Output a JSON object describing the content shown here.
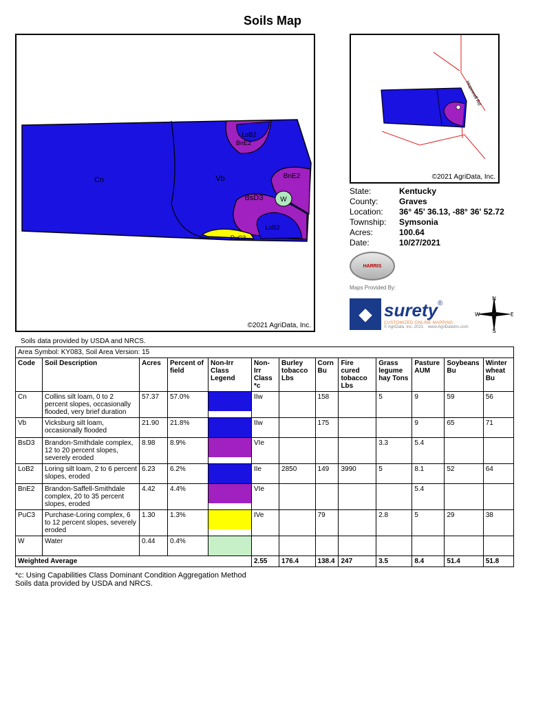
{
  "title": "Soils Map",
  "copyright": "©2021 AgriData, Inc.",
  "usda_note": "Soils data provided by USDA and NRCS.",
  "mini_map_road": "Hopewell Rd",
  "meta": {
    "state_k": "State:",
    "state_v": "Kentucky",
    "county_k": "County:",
    "county_v": "Graves",
    "location_k": "Location:",
    "location_v": "36° 45' 36.13,  -88° 36' 52.72",
    "township_k": "Township:",
    "township_v": "Symsonia",
    "acres_k": "Acres:",
    "acres_v": "100.64",
    "date_k": "Date:",
    "date_v": "10/27/2021"
  },
  "maps_provided": "Maps Provided By:",
  "surety": "surety",
  "surety_r": "®",
  "harris": "HARRIS",
  "area_symbol": "Area Symbol: KY083, Soil Area Version: 15",
  "columns": {
    "code": "Code",
    "desc": "Soil Description",
    "acres": "Acres",
    "pct": "Percent of field",
    "legend": "Non-Irr Class Legend",
    "class": "Non-Irr Class *c",
    "burley": "Burley tobacco Lbs",
    "corn": "Corn Bu",
    "firecured": "Fire cured tobacco Lbs",
    "grass": "Grass legume hay Tons",
    "pasture": "Pasture AUM",
    "soy": "Soybeans Bu",
    "wheat": "Winter wheat Bu"
  },
  "rows": [
    {
      "code": "Cn",
      "desc": "Collins silt loam, 0 to 2 percent slopes, occasionally flooded, very brief duration",
      "acres": "57.37",
      "pct": "57.0%",
      "color": "#1a12e0",
      "class": "IIw",
      "burley": "",
      "corn": "158",
      "firecured": "",
      "grass": "5",
      "pasture": "9",
      "soy": "59",
      "wheat": "56"
    },
    {
      "code": "Vb",
      "desc": "Vicksburg silt loam, occasionally flooded",
      "acres": "21.90",
      "pct": "21.8%",
      "color": "#1a12e0",
      "class": "IIw",
      "burley": "",
      "corn": "175",
      "firecured": "",
      "grass": "",
      "pasture": "9",
      "soy": "65",
      "wheat": "71"
    },
    {
      "code": "BsD3",
      "desc": "Brandon-Smithdale complex, 12 to 20 percent slopes, severely eroded",
      "acres": "8.98",
      "pct": "8.9%",
      "color": "#a020c0",
      "class": "VIe",
      "burley": "",
      "corn": "",
      "firecured": "",
      "grass": "3.3",
      "pasture": "5.4",
      "soy": "",
      "wheat": ""
    },
    {
      "code": "LoB2",
      "desc": "Loring silt loam, 2 to 6 percent slopes, eroded",
      "acres": "6.23",
      "pct": "6.2%",
      "color": "#1a12e0",
      "class": "IIe",
      "burley": "2850",
      "corn": "149",
      "firecured": "3990",
      "grass": "5",
      "pasture": "8.1",
      "soy": "52",
      "wheat": "64"
    },
    {
      "code": "BnE2",
      "desc": "Brandon-Saffell-Smithdale complex, 20 to 35 percent slopes, eroded",
      "acres": "4.42",
      "pct": "4.4%",
      "color": "#a020c0",
      "class": "VIe",
      "burley": "",
      "corn": "",
      "firecured": "",
      "grass": "",
      "pasture": "5.4",
      "soy": "",
      "wheat": ""
    },
    {
      "code": "PuC3",
      "desc": "Purchase-Loring complex, 6 to 12 percent slopes, severely eroded",
      "acres": "1.30",
      "pct": "1.3%",
      "color": "#ffff00",
      "class": "IVe",
      "burley": "",
      "corn": "79",
      "firecured": "",
      "grass": "2.8",
      "pasture": "5",
      "soy": "29",
      "wheat": "38"
    },
    {
      "code": "W",
      "desc": "Water",
      "acres": "0.44",
      "pct": "0.4%",
      "color": "#c8f0c8",
      "class": "",
      "burley": "",
      "corn": "",
      "firecured": "",
      "grass": "",
      "pasture": "",
      "soy": "",
      "wheat": ""
    }
  ],
  "wavg": {
    "label": "Weighted Average",
    "class": "2.55",
    "burley": "176.4",
    "corn": "138.4",
    "firecured": "247",
    "grass": "3.5",
    "pasture": "8.4",
    "soy": "51.4",
    "wheat": "51.8"
  },
  "footnote1": "*c: Using Capabilities Class Dominant Condition Aggregation Method",
  "footnote2": "Soils data provided by USDA and NRCS.",
  "map_labels": {
    "Cn": "Cn",
    "Vb": "Vb",
    "BsD3": "BsD3",
    "LoB2": "LoB2",
    "BnE2": "BnE2",
    "PuC3": "PuC3",
    "W": "W",
    "LoB2b": "LoB2",
    "BnE2b": "BnE2"
  },
  "colors": {
    "blue": "#1a12e0",
    "purple": "#a020c0",
    "yellow": "#ffff00",
    "water": "#b0e8c0",
    "red_road": "#e03030",
    "map_border": "#000000"
  }
}
